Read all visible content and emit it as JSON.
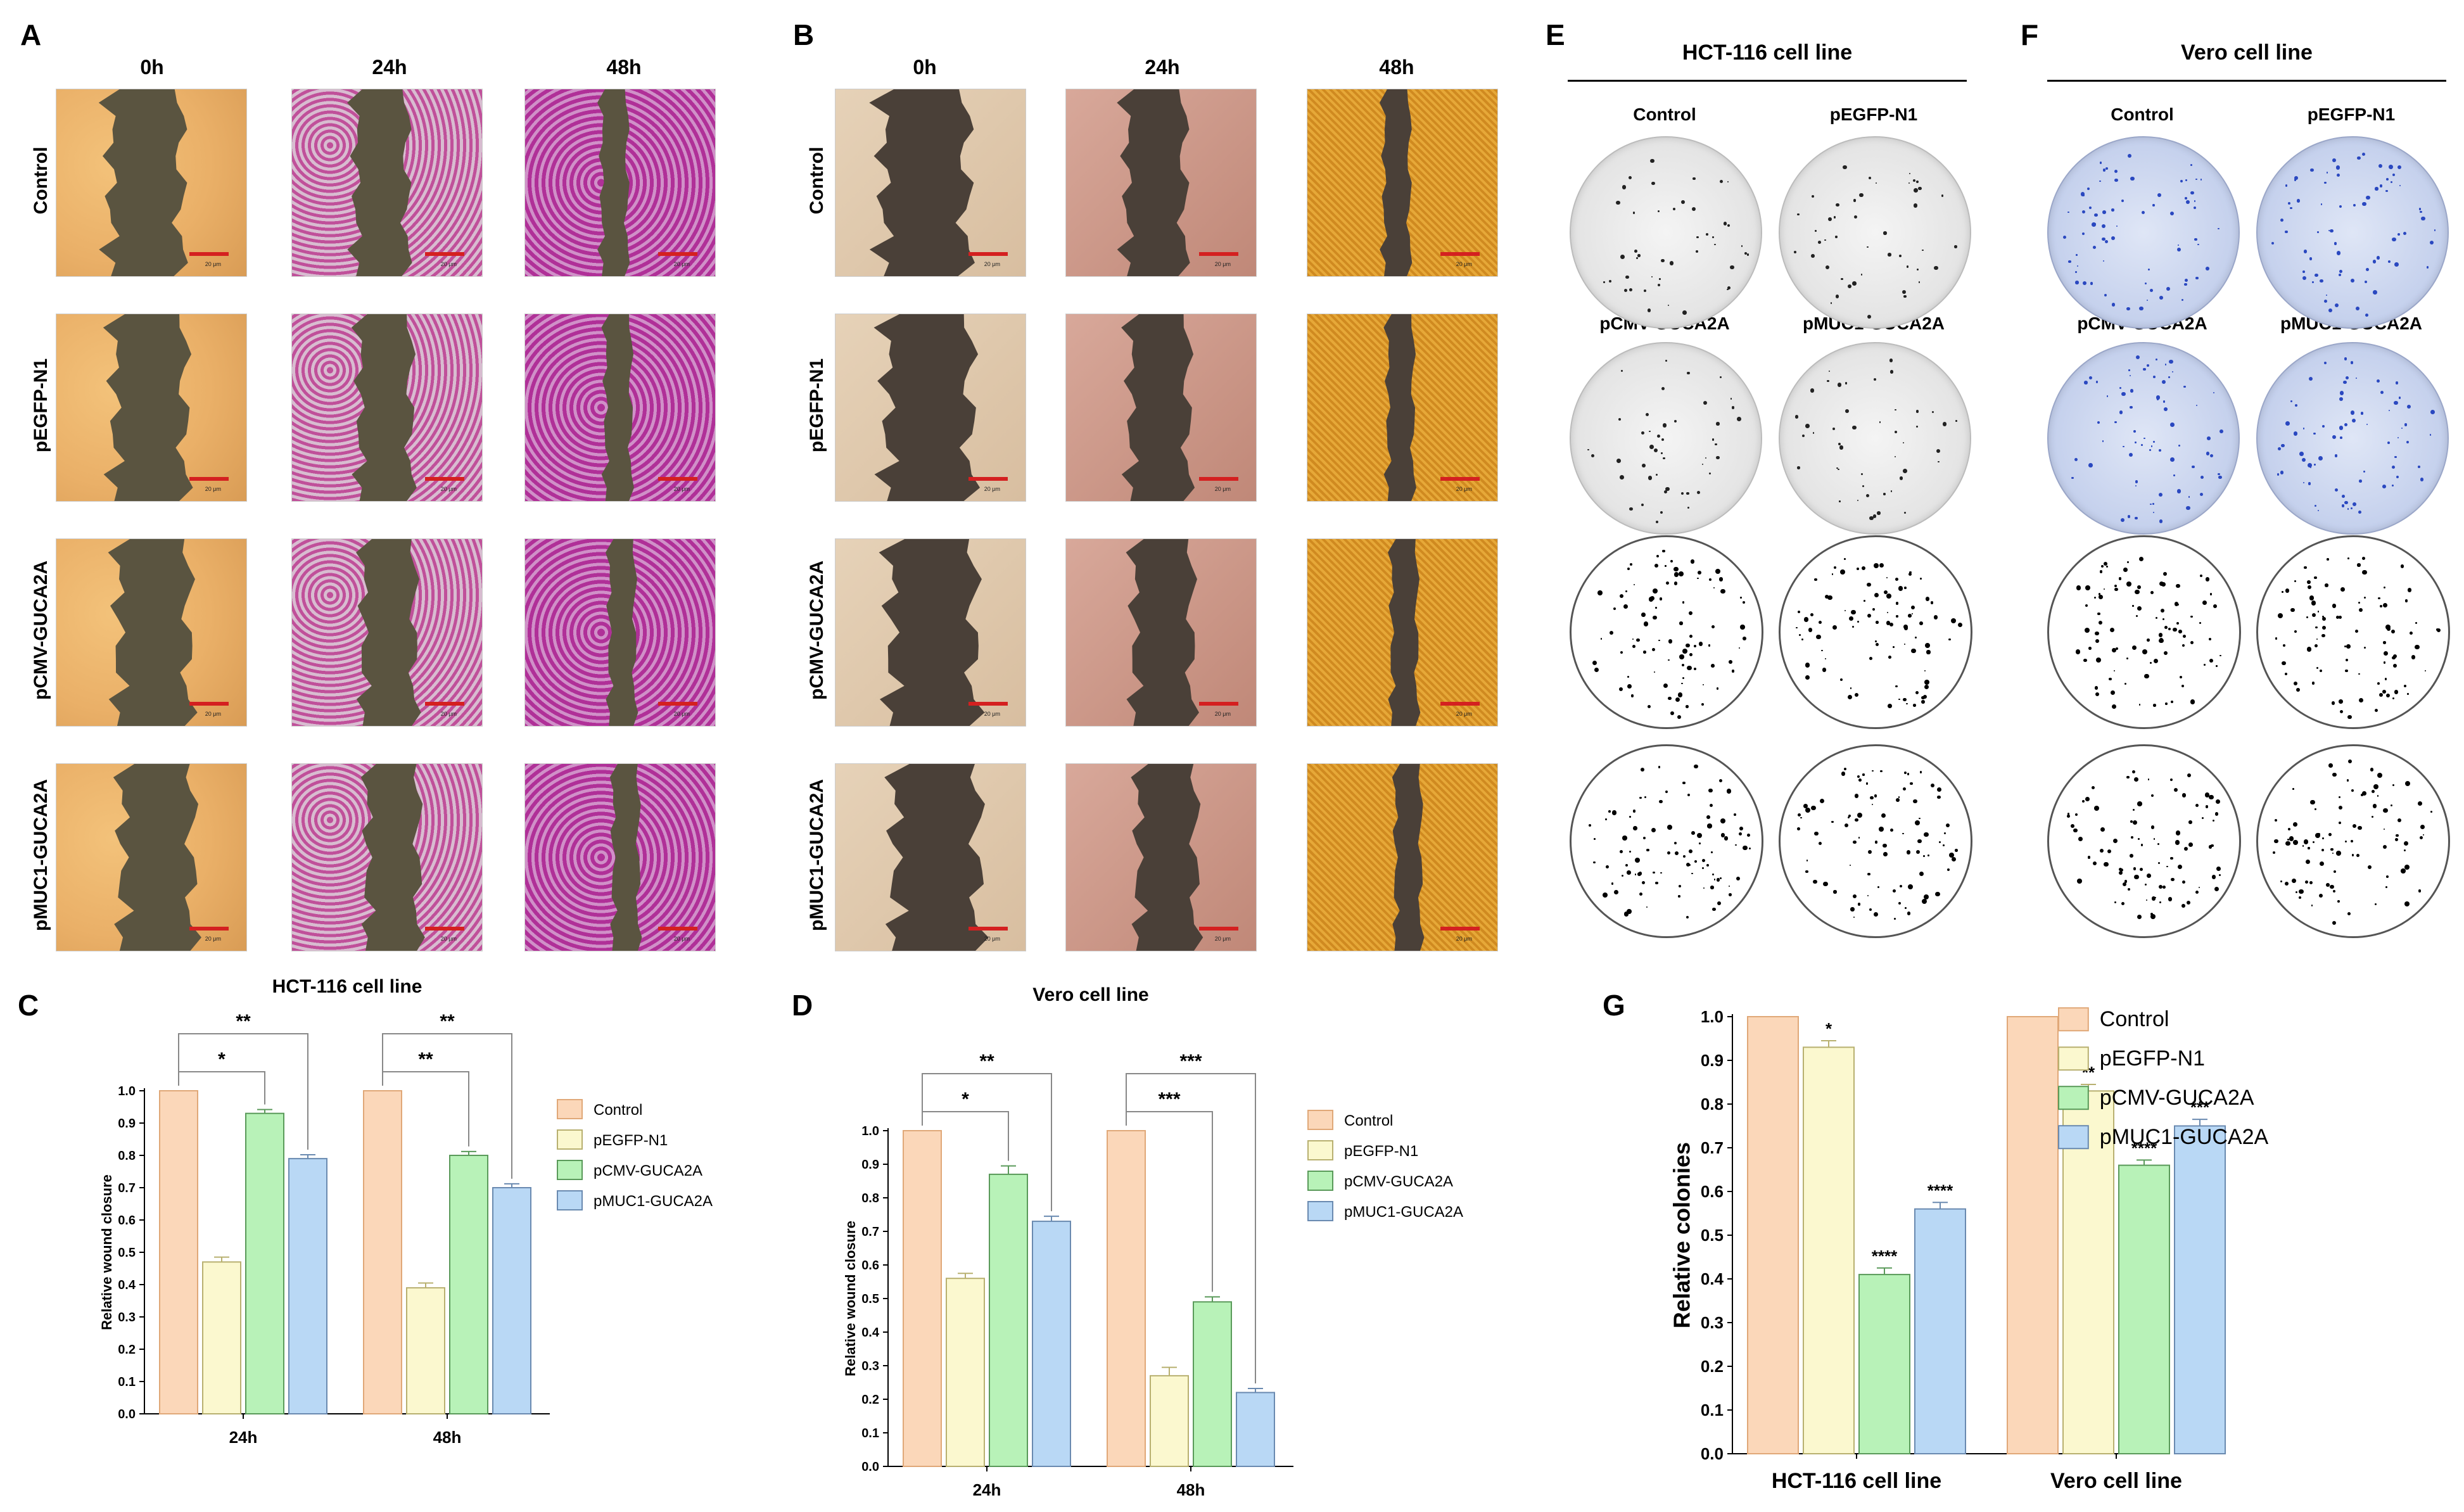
{
  "panels": {
    "A": "A",
    "B": "B",
    "C": "C",
    "D": "D",
    "E": "E",
    "F": "F",
    "G": "G"
  },
  "timepoints": [
    "0h",
    "24h",
    "48h"
  ],
  "groups": [
    "Control",
    "pEGFP-N1",
    "pCMV-GUCA2A",
    "pMUC1-GUCA2A"
  ],
  "scale_text": "20 μm",
  "colony": {
    "E_title": "HCT-116 cell line",
    "F_title": "Vero cell line",
    "groups": [
      "Control",
      "pEGFP-N1",
      "pCMV-GUCA2A",
      "pMUC1-GUCA2A"
    ]
  },
  "colors": {
    "Control": "#fbd7b9",
    "pEGFP-N1": "#fbf8cf",
    "pCMV-GUCA2A": "#b8f2b8",
    "pMUC1-GUCA2A": "#b9d8f5",
    "Control_edge": "#e0a878",
    "pEGFP-N1_edge": "#b8b070",
    "pCMV-GUCA2A_edge": "#5a9a5a",
    "pMUC1-GUCA2A_edge": "#6a8ab0"
  },
  "chart_data": [
    {
      "panel": "C",
      "type": "bar",
      "title": "HCT-116 cell line",
      "xlabel": "",
      "ylabel": "Relative wound closure",
      "categories": [
        "24h",
        "48h"
      ],
      "ylim": [
        0,
        1.0
      ],
      "yticks": [
        "0.0",
        "0.1",
        "0.2",
        "0.3",
        "0.4",
        "0.5",
        "0.6",
        "0.7",
        "0.8",
        "0.9",
        "1.0"
      ],
      "series": [
        {
          "name": "Control",
          "values": [
            1.0,
            1.0
          ],
          "errors": [
            0,
            0
          ]
        },
        {
          "name": "pEGFP-N1",
          "values": [
            0.47,
            0.39
          ],
          "errors": [
            0.015,
            0.015
          ]
        },
        {
          "name": "pCMV-GUCA2A",
          "values": [
            0.93,
            0.8
          ],
          "errors": [
            0.012,
            0.012
          ]
        },
        {
          "name": "pMUC1-GUCA2A",
          "values": [
            0.79,
            0.7
          ],
          "errors": [
            0.012,
            0.012
          ]
        }
      ],
      "brackets": [
        {
          "category": 0,
          "from": 0,
          "to": 2,
          "label": "*",
          "level": 1
        },
        {
          "category": 0,
          "from": 0,
          "to": 3,
          "label": "**",
          "level": 2
        },
        {
          "category": 1,
          "from": 0,
          "to": 2,
          "label": "**",
          "level": 1
        },
        {
          "category": 1,
          "from": 0,
          "to": 3,
          "label": "**",
          "level": 2
        }
      ],
      "legend": "right"
    },
    {
      "panel": "D",
      "type": "bar",
      "title": "Vero cell line",
      "xlabel": "",
      "ylabel": "Relative wound closure",
      "categories": [
        "24h",
        "48h"
      ],
      "ylim": [
        0,
        1.0
      ],
      "yticks": [
        "0.0",
        "0.1",
        "0.2",
        "0.3",
        "0.4",
        "0.5",
        "0.6",
        "0.7",
        "0.8",
        "0.9",
        "1.0"
      ],
      "series": [
        {
          "name": "Control",
          "values": [
            1.0,
            1.0
          ],
          "errors": [
            0,
            0
          ]
        },
        {
          "name": "pEGFP-N1",
          "values": [
            0.56,
            0.27
          ],
          "errors": [
            0.015,
            0.025
          ]
        },
        {
          "name": "pCMV-GUCA2A",
          "values": [
            0.87,
            0.49
          ],
          "errors": [
            0.025,
            0.015
          ]
        },
        {
          "name": "pMUC1-GUCA2A",
          "values": [
            0.73,
            0.22
          ],
          "errors": [
            0.015,
            0.012
          ]
        }
      ],
      "brackets": [
        {
          "category": 0,
          "from": 0,
          "to": 2,
          "label": "*",
          "level": 1
        },
        {
          "category": 0,
          "from": 0,
          "to": 3,
          "label": "**",
          "level": 2
        },
        {
          "category": 1,
          "from": 0,
          "to": 2,
          "label": "***",
          "level": 1
        },
        {
          "category": 1,
          "from": 0,
          "to": 3,
          "label": "***",
          "level": 2
        }
      ],
      "legend": "right"
    },
    {
      "panel": "G",
      "type": "bar",
      "title": "",
      "xlabel": "",
      "ylabel": "Relative colonies",
      "categories": [
        "HCT-116 cell line",
        "Vero cell line"
      ],
      "ylim": [
        0,
        1.0
      ],
      "yticks": [
        "0.0",
        "0.1",
        "0.2",
        "0.3",
        "0.4",
        "0.5",
        "0.6",
        "0.7",
        "0.8",
        "0.9",
        "1.0"
      ],
      "series": [
        {
          "name": "Control",
          "values": [
            1.0,
            1.0
          ],
          "errors": [
            0,
            0
          ],
          "sig": [
            "",
            ""
          ]
        },
        {
          "name": "pEGFP-N1",
          "values": [
            0.93,
            0.83
          ],
          "errors": [
            0.015,
            0.015
          ],
          "sig": [
            "*",
            "**"
          ]
        },
        {
          "name": "pCMV-GUCA2A",
          "values": [
            0.41,
            0.66
          ],
          "errors": [
            0.015,
            0.012
          ],
          "sig": [
            "****",
            "****"
          ]
        },
        {
          "name": "pMUC1-GUCA2A",
          "values": [
            0.56,
            0.75
          ],
          "errors": [
            0.015,
            0.015
          ],
          "sig": [
            "****",
            "***"
          ]
        }
      ],
      "legend": "top-right"
    }
  ]
}
